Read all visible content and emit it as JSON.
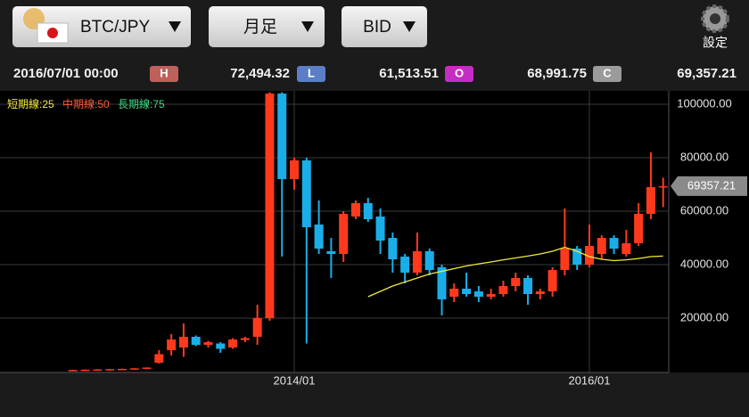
{
  "toolbar": {
    "pair": "BTC/JPY",
    "period": "月足",
    "side": "BID",
    "settings": "設定"
  },
  "quote": {
    "time": "2016/07/01 00:00",
    "high_badge": "H",
    "high": "72,494.32",
    "low_badge": "L",
    "low": "61,513.51",
    "open_badge": "O",
    "open": "68,991.75",
    "close_badge": "C",
    "close": "69,357.21"
  },
  "chart_data": {
    "type": "candlestick",
    "categories": [
      null,
      null,
      null,
      null,
      null,
      null,
      null,
      null,
      null,
      null,
      null,
      null,
      null,
      null,
      null,
      null,
      null,
      null,
      "2014/01",
      null,
      null,
      null,
      null,
      null,
      null,
      null,
      null,
      null,
      null,
      null,
      null,
      null,
      null,
      null,
      null,
      null,
      null,
      null,
      null,
      null,
      null,
      null,
      "2016/01",
      null,
      null,
      null,
      null,
      null,
      null
    ],
    "open": [
      500,
      600,
      700,
      800,
      900,
      1000,
      1200,
      3300,
      8000,
      9000,
      13000,
      10000,
      10500,
      9000,
      11800,
      13000,
      20000,
      104000,
      72000,
      79000,
      55000,
      45000,
      44000,
      58000,
      63000,
      58000,
      50000,
      43000,
      37000,
      45000,
      39000,
      28000,
      31000,
      30000,
      28000,
      29000,
      32000,
      35000,
      29000,
      30000,
      38000,
      46000,
      40000,
      44000,
      50000,
      44000,
      48000,
      59000,
      68991.75
    ],
    "high": [
      700,
      800,
      900,
      1000,
      1100,
      1300,
      1600,
      8000,
      14000,
      18000,
      13500,
      11500,
      11000,
      12500,
      13000,
      25000,
      104500,
      104500,
      80000,
      80000,
      64000,
      50000,
      60000,
      64000,
      65000,
      61000,
      52000,
      44000,
      52000,
      46000,
      40000,
      33000,
      37000,
      32000,
      31000,
      34000,
      37000,
      36000,
      31000,
      39000,
      61000,
      47000,
      55000,
      51000,
      51000,
      53000,
      63000,
      82000,
      72494.32
    ],
    "low": [
      400,
      500,
      600,
      700,
      800,
      900,
      1100,
      3000,
      6000,
      5500,
      9500,
      9000,
      7000,
      8500,
      11000,
      10000,
      19000,
      43000,
      68000,
      10500,
      44000,
      35000,
      41000,
      57000,
      56000,
      44000,
      37000,
      33000,
      36000,
      36000,
      21000,
      26000,
      28000,
      26000,
      27000,
      28000,
      30000,
      25000,
      27000,
      28000,
      36000,
      38000,
      39000,
      42000,
      44000,
      43000,
      47000,
      57000,
      61513.51
    ],
    "close": [
      600,
      700,
      800,
      900,
      1000,
      1200,
      1500,
      6500,
      12000,
      13000,
      10000,
      11000,
      8500,
      12000,
      12500,
      20000,
      104000,
      72000,
      79000,
      54000,
      46000,
      44000,
      59000,
      63000,
      57000,
      49000,
      42000,
      37000,
      45000,
      38000,
      27000,
      31000,
      29000,
      28000,
      29000,
      32000,
      35000,
      29000,
      30000,
      38000,
      46000,
      40000,
      47000,
      50000,
      46000,
      48000,
      59000,
      69000,
      69357.21
    ],
    "up_color": "#ff3a1c",
    "down_color": "#1aaee8",
    "series": [
      {
        "name": "短期線:25",
        "color": "#f3ea3a",
        "values": [
          null,
          null,
          null,
          null,
          null,
          null,
          null,
          null,
          null,
          null,
          null,
          null,
          null,
          null,
          null,
          null,
          null,
          null,
          null,
          null,
          null,
          null,
          null,
          null,
          28000,
          30000,
          32000,
          33500,
          35000,
          36500,
          37500,
          38500,
          39500,
          40300,
          41000,
          41800,
          42500,
          43200,
          44000,
          45000,
          46500,
          45000,
          43000,
          42000,
          41500,
          41800,
          42300,
          43000,
          43200
        ]
      },
      {
        "name": "中期線:50",
        "color": "#ff5a36"
      },
      {
        "name": "長期線:75",
        "color": "#3ddc84"
      }
    ],
    "ylim": [
      0,
      104667
    ],
    "yticks": [
      {
        "value": 20000,
        "label": "20000.00"
      },
      {
        "value": 40000,
        "label": "40000.00"
      },
      {
        "value": 60000,
        "label": "60000.00"
      },
      {
        "value": 80000,
        "label": "80000.00"
      },
      {
        "value": 100000,
        "label": "100000.00"
      }
    ],
    "current_price": 69357.21,
    "grid": true
  }
}
